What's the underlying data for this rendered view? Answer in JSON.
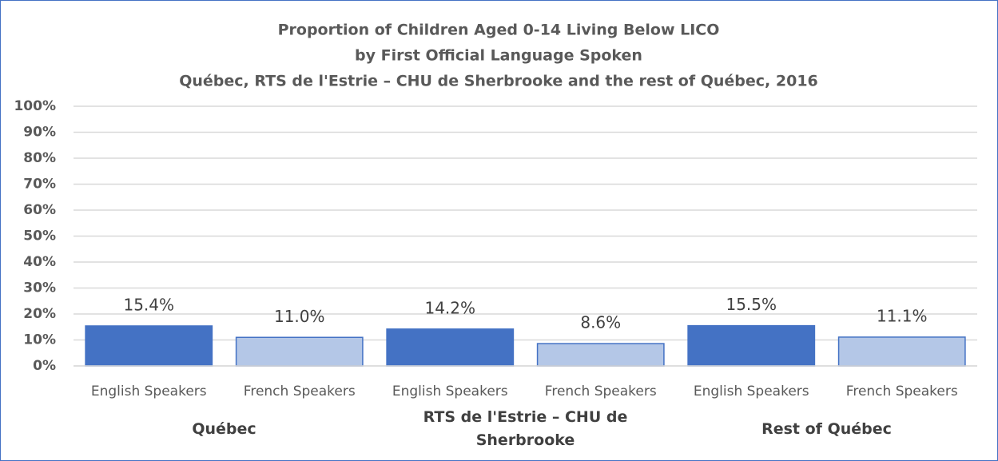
{
  "chart_data": {
    "type": "bar",
    "title": [
      "Proportion of Children Aged 0-14 Living Below LICO",
      "by First Official Language Spoken",
      "Québec, RTS de l'Estrie – CHU de Sherbrooke and the rest of Québec, 2016"
    ],
    "groups": [
      "Québec",
      "RTS de l'Estrie – CHU de Sherbrooke",
      "Rest of Québec"
    ],
    "categories": [
      "English Speakers",
      "French Speakers",
      "English Speakers",
      "French Speakers",
      "English Speakers",
      "French Speakers"
    ],
    "values": [
      15.4,
      11.0,
      14.2,
      8.6,
      15.5,
      11.1
    ],
    "value_labels": [
      "15.4%",
      "11.0%",
      "14.2%",
      "8.6%",
      "15.5%",
      "11.1%"
    ],
    "colors": [
      "#4472c4",
      "#b4c7e7",
      "#4472c4",
      "#b4c7e7",
      "#4472c4",
      "#b4c7e7"
    ],
    "ylim": [
      0,
      100
    ],
    "yticks": [
      {
        "value": 0,
        "label": "0%"
      },
      {
        "value": 10,
        "label": "10%"
      },
      {
        "value": 20,
        "label": "20%"
      },
      {
        "value": 30,
        "label": "30%"
      },
      {
        "value": 40,
        "label": "40%"
      },
      {
        "value": 50,
        "label": "50%"
      },
      {
        "value": 60,
        "label": "60%"
      },
      {
        "value": 70,
        "label": "70%"
      },
      {
        "value": 80,
        "label": "80%"
      },
      {
        "value": 90,
        "label": "90%"
      },
      {
        "value": 100,
        "label": "100%"
      }
    ],
    "grid": true
  }
}
